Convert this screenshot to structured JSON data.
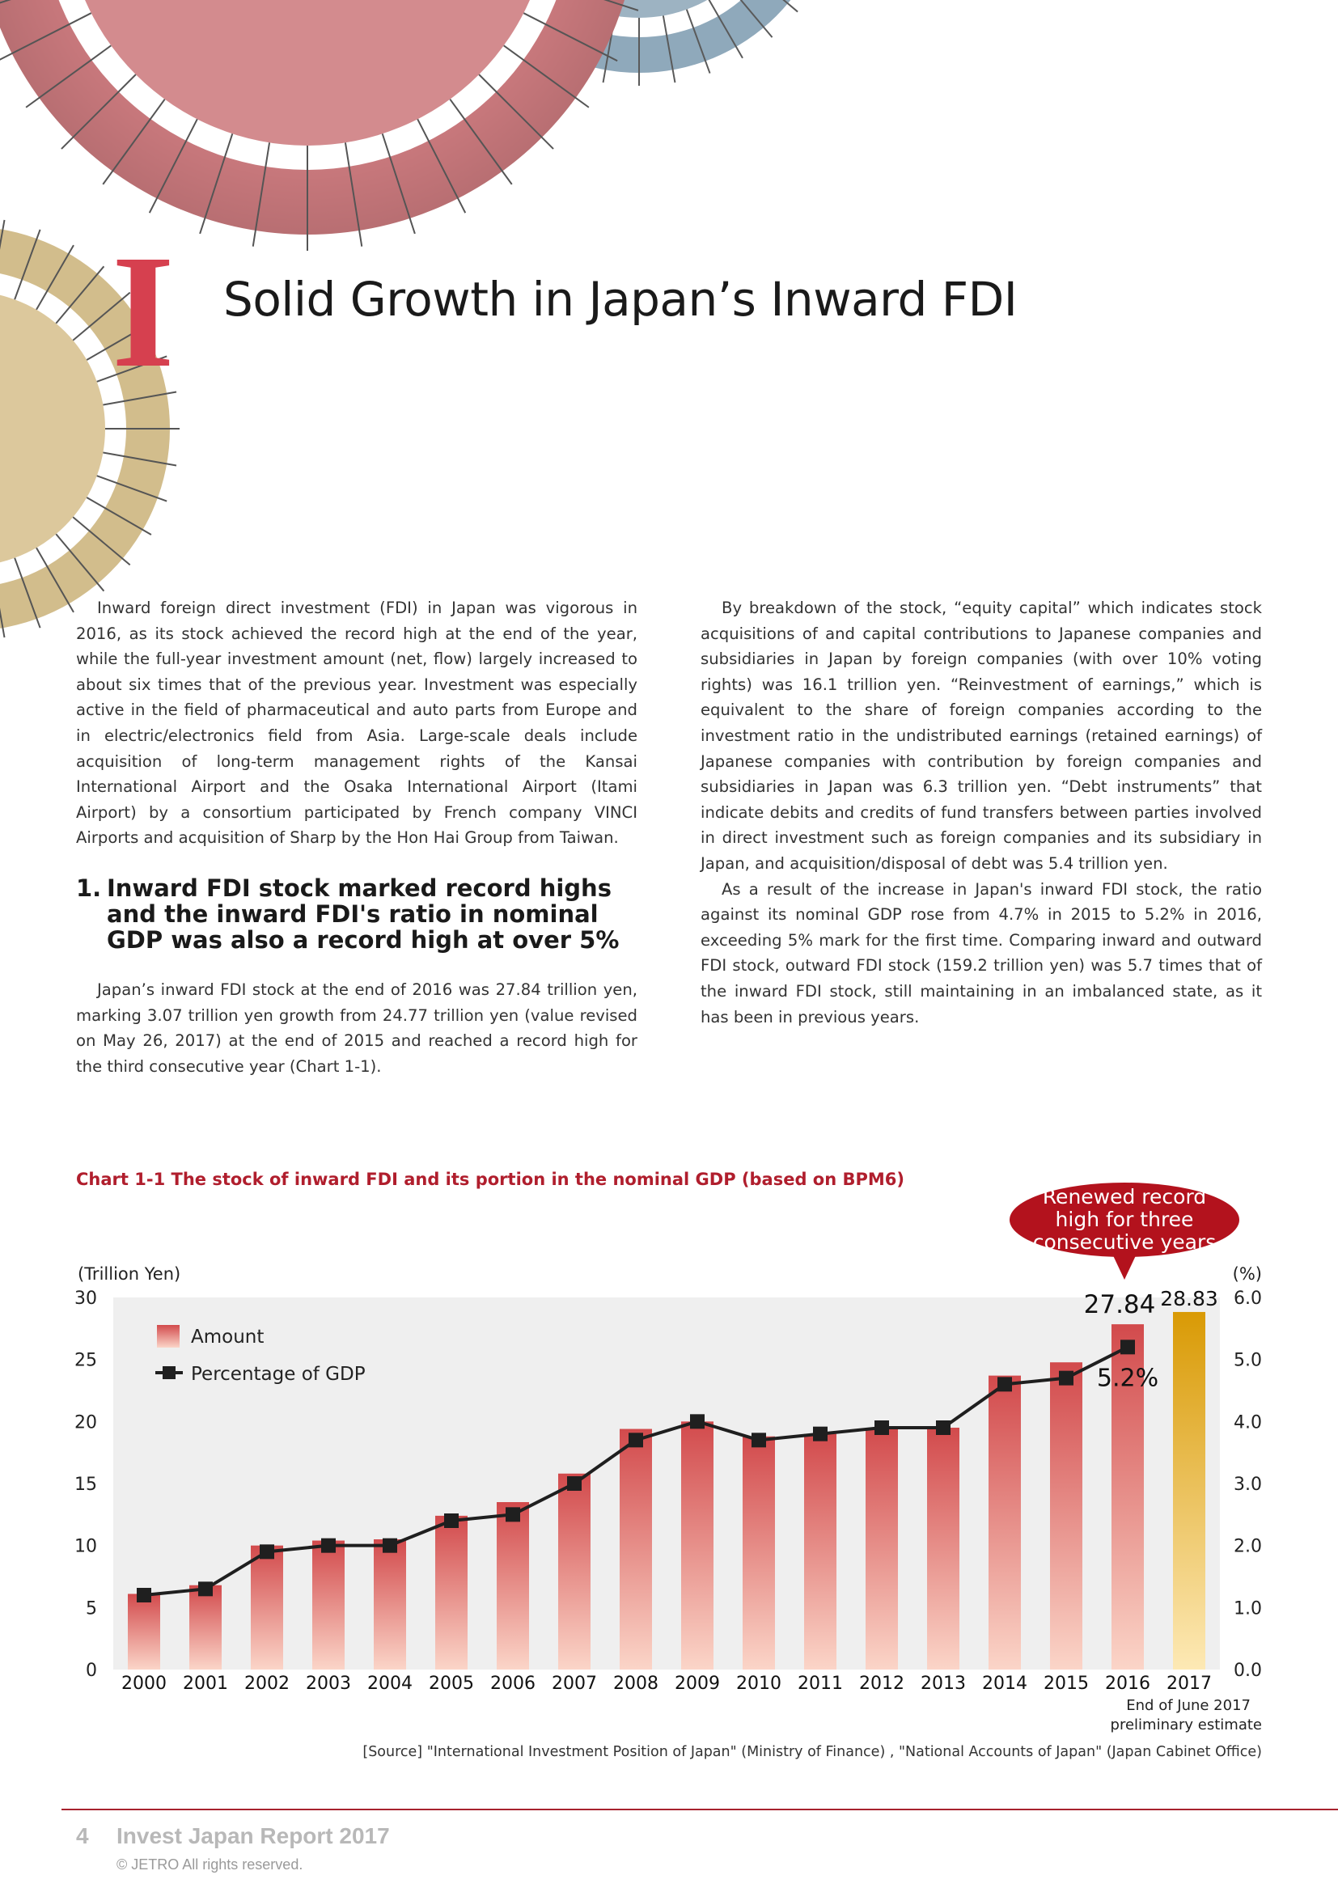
{
  "page": {
    "chapter_numeral": "I",
    "chapter_title": "Solid Growth in Japan’s Inward FDI",
    "paragraphs_left": [
      "Inward foreign direct investment (FDI) in Japan was vigorous in 2016, as its stock achieved the record high at the end of the year, while the full-year investment amount (net, flow) largely increased to about six times that of the previous year. Investment was especially active in the field of pharmaceutical and auto parts from Europe and in electric/electronics field from Asia. Large-scale deals include acquisition of long-term management rights of the Kansai International Airport and the Osaka International Airport (Itami Airport) by a consortium participated by French company VINCI Airports and acquisition of Sharp by the Hon Hai Group from Taiwan."
    ],
    "section_number": "1.",
    "section_heading": "Inward FDI stock marked record highs and the inward FDI's ratio in nominal GDP was also a record high at over 5%",
    "paragraphs_left_after": [
      "Japan’s inward FDI stock at the end of 2016 was 27.84 trillion yen, marking 3.07 trillion yen growth from 24.77 trillion yen (value revised on May 26, 2017) at the end of 2015 and reached a record high for the third consecutive year (Chart 1-1)."
    ],
    "paragraphs_right": [
      "By breakdown of the stock, “equity capital” which indicates stock acquisitions of and capital contributions to Japanese companies and subsidiaries in Japan by foreign companies (with over 10% voting rights) was 16.1 trillion yen. “Reinvestment of earnings,” which is equivalent to the share of foreign companies according to the investment ratio in the undistributed earnings (retained earnings) of Japanese companies with contribution by foreign companies and subsidiaries in Japan was 6.3 trillion yen. “Debt instruments” that indicate debits and credits of fund transfers between parties involved in direct investment such as foreign companies and its subsidiary in Japan, and acquisition/disposal of debt was 5.4 trillion yen.",
      "As a result of the increase in Japan's inward FDI stock, the ratio against its nominal GDP rose from 4.7% in 2015 to 5.2% in 2016, exceeding 5% mark for the first time. Comparing inward and outward FDI stock, outward FDI stock (159.2 trillion yen) was 5.7 times that of the inward FDI stock, still maintaining in an imbalanced state, as it has been in previous years."
    ],
    "chart_title": "Chart 1-1 The stock of inward FDI and its portion in the nominal GDP (based on BPM6)",
    "source": "[Source] \"International Investment Position of Japan\" (Ministry of Finance) , \"National Accounts of Japan\" (Japan Cabinet Office)",
    "footer": {
      "page_number": "4",
      "report_name": "Invest Japan Report 2017",
      "copyright": "© JETRO All rights reserved."
    }
  },
  "chart_data": {
    "type": "bar",
    "title": "Chart 1-1 The stock of inward FDI and its portion in the nominal GDP (based on BPM6)",
    "y_left_label": "(Trillion Yen)",
    "y_right_label": "(%)",
    "y_left_lim": [
      0,
      30
    ],
    "y_left_ticks": [
      "0",
      "5",
      "10",
      "15",
      "20",
      "25",
      "30"
    ],
    "y_right_lim": [
      0,
      6
    ],
    "y_right_ticks": [
      "0.0",
      "1.0",
      "2.0",
      "3.0",
      "4.0",
      "5.0",
      "6.0"
    ],
    "categories": [
      "2000",
      "2001",
      "2002",
      "2003",
      "2004",
      "2005",
      "2006",
      "2007",
      "2008",
      "2009",
      "2010",
      "2011",
      "2012",
      "2013",
      "2014",
      "2015",
      "2016",
      "2017"
    ],
    "series": [
      {
        "name": "Amount",
        "type": "bar",
        "axis": "left",
        "values": [
          6.1,
          6.8,
          10.0,
          10.4,
          10.5,
          12.4,
          13.5,
          15.8,
          19.4,
          20.0,
          18.8,
          19.0,
          19.5,
          19.5,
          23.7,
          24.77,
          27.84,
          28.83
        ],
        "colors": {
          "top": "#d24a4c",
          "bottom": "#fbd5c8"
        }
      },
      {
        "name": "Percentage of GDP",
        "type": "line",
        "axis": "right",
        "values": [
          1.2,
          1.3,
          1.9,
          2.0,
          2.0,
          2.4,
          2.5,
          3.0,
          3.7,
          4.0,
          3.7,
          3.8,
          3.9,
          3.9,
          4.6,
          4.7,
          5.2,
          null
        ],
        "color": "#222222"
      }
    ],
    "highlight_bar": {
      "category": "2017",
      "colors": {
        "top": "#d99a05",
        "bottom": "#fde9b5"
      }
    },
    "data_labels": [
      {
        "category": "2016",
        "text": "27.84"
      },
      {
        "category": "2017",
        "text": "28.83"
      },
      {
        "category": "2016",
        "text": "5.2%"
      }
    ],
    "category_note": [
      "End of June 2017",
      "preliminary estimate"
    ],
    "callout": {
      "lines": [
        "Renewed record",
        "high for three",
        "consecutive years"
      ],
      "color": "#b3121d"
    },
    "legend_position": "top-left",
    "grid": false
  }
}
